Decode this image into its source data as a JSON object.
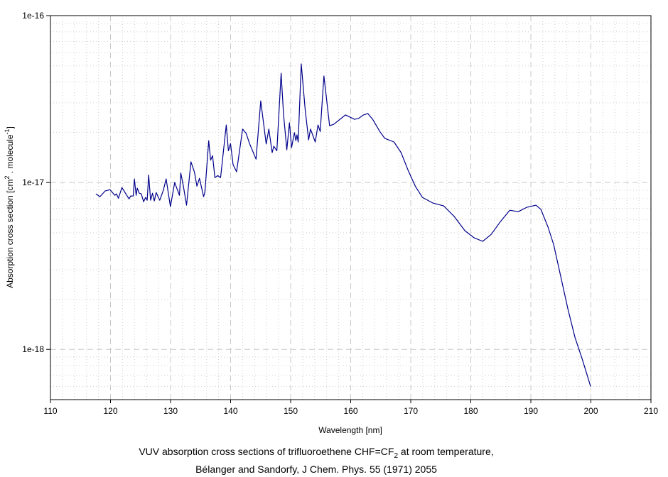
{
  "chart_data": {
    "type": "line",
    "title": "",
    "xlabel": "Wavelength [nm]",
    "ylabel": {
      "prefix": "Absorption cross section [cm",
      "sup1": "2",
      "middle": " . molecule",
      "sup2": "-1",
      "suffix": "]"
    },
    "xlim": [
      110,
      210
    ],
    "ylim": [
      5e-19,
      1e-16
    ],
    "yscale": "log",
    "grid": true,
    "x_ticks": [
      "110",
      "120",
      "130",
      "140",
      "150",
      "160",
      "170",
      "180",
      "190",
      "200",
      "210"
    ],
    "y_ticks": [
      {
        "value": 1e-16,
        "label": "1e-16"
      },
      {
        "value": 1e-17,
        "label": "1e-17"
      },
      {
        "value": 1e-18,
        "label": "1e-18"
      }
    ],
    "series": [
      {
        "name": "CHF=CF2",
        "color": "#00008b",
        "x": [
          117.56,
          118.24,
          119.1,
          119.93,
          120.72,
          120.99,
          121.31,
          121.9,
          122.49,
          123.09,
          123.36,
          123.79,
          123.98,
          124.27,
          124.46,
          124.78,
          125.13,
          125.52,
          125.84,
          126.11,
          126.35,
          126.67,
          126.99,
          127.29,
          127.61,
          128.2,
          128.79,
          129.27,
          129.98,
          130.69,
          131.48,
          131.71,
          132.1,
          132.66,
          133.4,
          133.99,
          134.39,
          134.82,
          135.5,
          135.73,
          136.36,
          136.68,
          136.99,
          137.39,
          137.86,
          138.33,
          139.28,
          139.63,
          139.99,
          140.41,
          141.0,
          142.0,
          142.59,
          143.18,
          144.24,
          145.02,
          145.93,
          146.37,
          146.92,
          147.2,
          147.71,
          148.42,
          148.81,
          149.36,
          149.8,
          150.15,
          150.63,
          150.86,
          151.05,
          151.25,
          151.76,
          152.43,
          152.99,
          153.3,
          154.09,
          154.56,
          154.92,
          155.54,
          156.49,
          157.16,
          159.14,
          160.63,
          161.3,
          162.13,
          162.84,
          163.66,
          164.85,
          165.67,
          167.21,
          168.39,
          169.57,
          170.76,
          171.94,
          173.71,
          175.48,
          177.26,
          179.03,
          180.57,
          181.99,
          183.4,
          184.94,
          186.48,
          187.9,
          189.31,
          190.85,
          191.68,
          192.86,
          193.81,
          194.99,
          196.17,
          197.35,
          198.53,
          199.95
        ],
        "y": [
          8.55e-18,
          8.22e-18,
          8.89e-18,
          9.06e-18,
          8.38e-18,
          8.55e-18,
          8.05e-18,
          9.33e-18,
          8.63e-18,
          7.98e-18,
          8.3e-18,
          8.3e-18,
          1.05e-17,
          8.38e-18,
          9.25e-18,
          8.63e-18,
          8.55e-18,
          7.67e-18,
          8.14e-18,
          7.83e-18,
          1.11e-17,
          7.83e-18,
          8.63e-18,
          7.75e-18,
          8.71e-18,
          7.83e-18,
          8.97e-18,
          1.05e-17,
          7.16e-18,
          1e-17,
          8.38e-18,
          1.14e-17,
          9.7e-18,
          7.31e-18,
          1.33e-17,
          1.15e-17,
          9.5e-18,
          1.06e-17,
          8.22e-18,
          8.8e-18,
          1.78e-17,
          1.36e-17,
          1.45e-17,
          1.07e-17,
          1.1e-17,
          1.07e-17,
          2.21e-17,
          1.55e-17,
          1.71e-17,
          1.28e-17,
          1.16e-17,
          2.09e-17,
          1.97e-17,
          1.7e-17,
          1.38e-17,
          3.08e-17,
          1.7e-17,
          2.09e-17,
          1.51e-17,
          1.65e-17,
          1.55e-17,
          4.52e-17,
          2.59e-17,
          1.57e-17,
          2.28e-17,
          1.62e-17,
          1.99e-17,
          1.78e-17,
          1.93e-17,
          1.75e-17,
          5.14e-17,
          2.72e-17,
          1.8e-17,
          2.09e-17,
          1.75e-17,
          2.21e-17,
          2.02e-17,
          4.35e-17,
          2.19e-17,
          2.23e-17,
          2.54e-17,
          2.39e-17,
          2.42e-17,
          2.54e-17,
          2.59e-17,
          2.39e-17,
          2.02e-17,
          1.84e-17,
          1.75e-17,
          1.51e-17,
          1.18e-17,
          9.5e-18,
          8.14e-18,
          7.53e-18,
          7.24e-18,
          6.25e-18,
          5.14e-18,
          4.66e-18,
          4.44e-18,
          4.89e-18,
          5.83e-18,
          6.82e-18,
          6.69e-18,
          7.1e-18,
          7.31e-18,
          6.89e-18,
          5.4e-18,
          4.23e-18,
          2.72e-18,
          1.75e-18,
          1.18e-18,
          8.8e-19,
          6e-19
        ]
      }
    ]
  },
  "caption": {
    "line1_prefix": "VUV absorption cross sections of trifluoroethene CHF=CF",
    "line1_sub": "2",
    "line1_suffix": " at room temperature,",
    "line2": "Bélanger and Sandorfy, J Chem. Phys. 55 (1971) 2055"
  }
}
